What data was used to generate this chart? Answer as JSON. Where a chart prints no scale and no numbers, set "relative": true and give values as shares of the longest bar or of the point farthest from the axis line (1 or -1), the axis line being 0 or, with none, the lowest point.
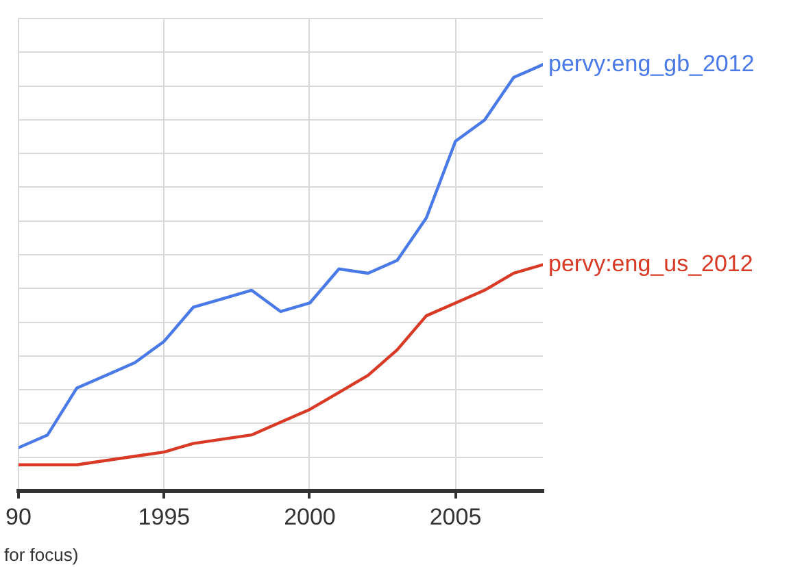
{
  "chart_data": {
    "type": "line",
    "relative": true,
    "grid": true,
    "x": [
      1990,
      1991,
      1992,
      1993,
      1994,
      1995,
      1996,
      1997,
      1998,
      1999,
      2000,
      2001,
      2002,
      2003,
      2004,
      2005,
      2006,
      2007,
      2008
    ],
    "xlim": [
      1990,
      2008
    ],
    "xticks": [
      {
        "value": 1990,
        "label": "90"
      },
      1995,
      2000,
      2005
    ],
    "annotations": [
      "for focus)"
    ],
    "series": [
      {
        "name": "pervy:eng_gb_2012",
        "color": "#4a7ae8",
        "values": [
          0.1,
          0.13,
          0.24,
          0.27,
          0.3,
          0.35,
          0.43,
          0.45,
          0.47,
          0.42,
          0.44,
          0.52,
          0.51,
          0.54,
          0.64,
          0.82,
          0.87,
          0.97,
          1
        ]
      },
      {
        "name": "pervy:eng_us_2012",
        "color": "#d83a26",
        "values": [
          0.06,
          0.06,
          0.06,
          0.07,
          0.08,
          0.09,
          0.11,
          0.12,
          0.13,
          0.16,
          0.19,
          0.23,
          0.27,
          0.33,
          0.41,
          0.44,
          0.47,
          0.51,
          0.53
        ]
      }
    ]
  }
}
